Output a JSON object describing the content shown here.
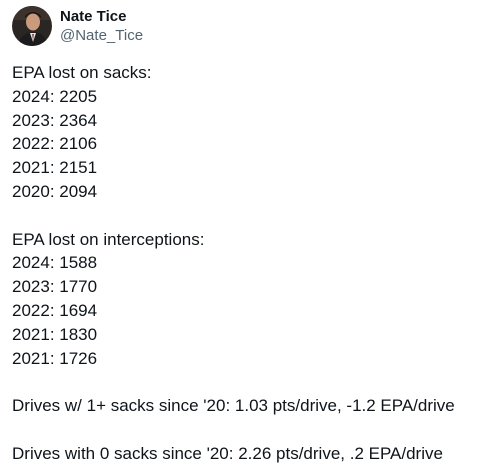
{
  "author": {
    "display_name": "Nate Tice",
    "handle": "@Nate_Tice",
    "avatar_icon": "profile-photo"
  },
  "post": {
    "sacks_heading": "EPA lost on sacks:",
    "sacks": [
      "2024: 2205",
      "2023: 2364",
      "2022: 2106",
      "2021: 2151",
      "2020: 2094"
    ],
    "interceptions_heading": "EPA lost on interceptions:",
    "interceptions": [
      "2024: 1588",
      "2023: 1770",
      "2022: 1694",
      "2021: 1830",
      "2021: 1726"
    ],
    "drives_with_sacks": "Drives w/ 1+ sacks since '20: 1.03 pts/drive, -1.2 EPA/drive",
    "drives_without_sacks": "Drives with 0 sacks since '20: 2.26 pts/drive, .2 EPA/drive"
  },
  "colors": {
    "text": "#0f1419",
    "secondary_text": "#536471"
  }
}
